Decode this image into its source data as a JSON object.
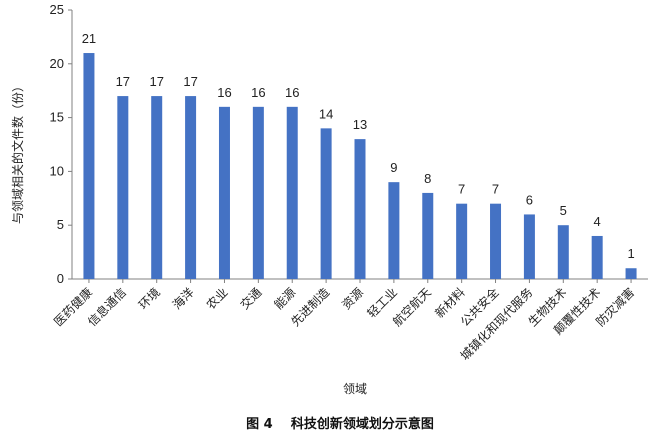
{
  "colors": {
    "bar": "#4472C4",
    "axis": "#808080",
    "text": "#222222"
  },
  "caption": "图 4    科技创新领域划分示意图",
  "chart_data": {
    "type": "bar",
    "categories": [
      "医药健康",
      "信息通信",
      "环境",
      "海洋",
      "农业",
      "交通",
      "能源",
      "先进制造",
      "资源",
      "轻工业",
      "航空航天",
      "新材料",
      "公共安全",
      "城镇化和现代服务",
      "生物技术",
      "颠覆性技术",
      "防灾减害"
    ],
    "series": [
      {
        "values": [
          21,
          17,
          17,
          17,
          16,
          16,
          16,
          14,
          13,
          9,
          8,
          7,
          7,
          6,
          5,
          4,
          1
        ]
      }
    ],
    "xlabel": "领域",
    "ylabel": "与领域相关的文件数（份）",
    "ylim": [
      0,
      25
    ],
    "yticks": [
      0,
      5,
      10,
      15,
      20,
      25
    ],
    "grid": false,
    "legend": "none",
    "data_labels": true
  }
}
